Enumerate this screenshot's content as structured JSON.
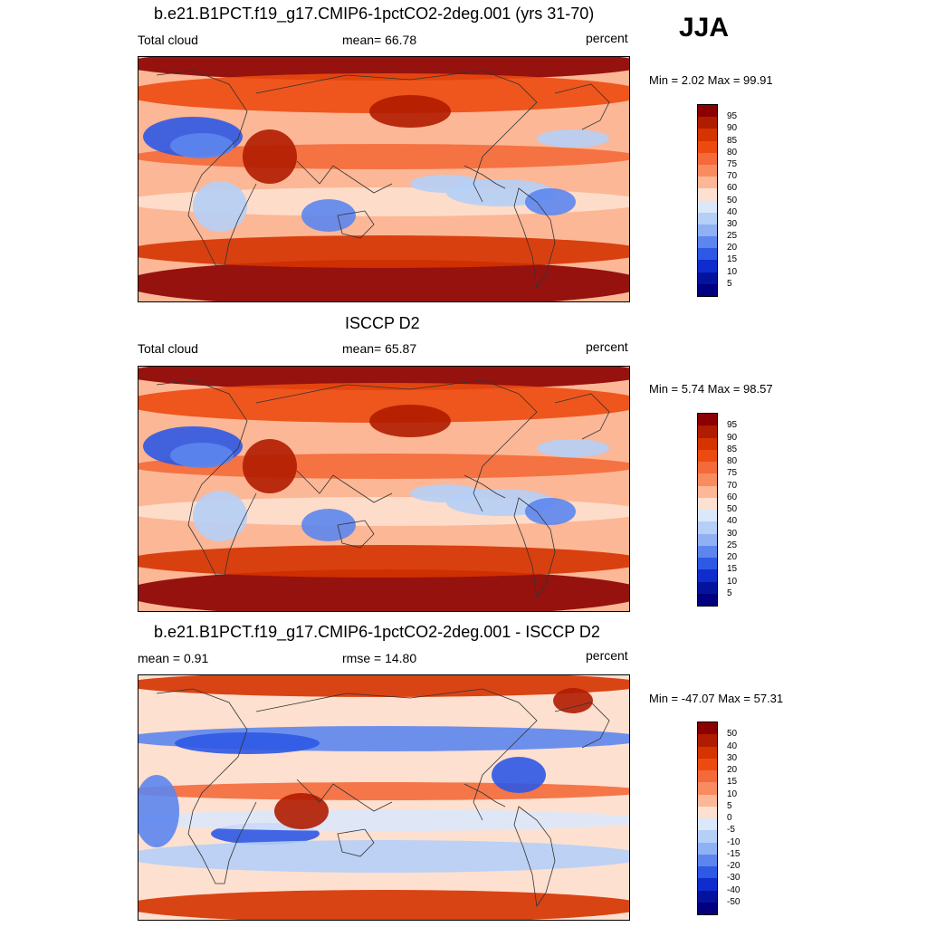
{
  "season": "JJA",
  "panels": [
    {
      "title": "b.e21.B1PCT.f19_g17.CMIP6-1pctCO2-2deg.001 (yrs 31-70)",
      "left_label": "Total cloud",
      "center_label": "mean=  66.78",
      "units": "percent",
      "minmax": "Min =   2.02 Max =  99.91",
      "colorbar_labels": [
        "95",
        "90",
        "85",
        "80",
        "75",
        "70",
        "60",
        "50",
        "40",
        "30",
        "25",
        "20",
        "15",
        "10",
        "5"
      ],
      "map_type": "absolute"
    },
    {
      "title": "ISCCP D2",
      "left_label": "Total cloud",
      "center_label": "mean=  65.87",
      "units": "percent",
      "minmax": "Min =   5.74 Max =  98.57",
      "colorbar_labels": [
        "95",
        "90",
        "85",
        "80",
        "75",
        "70",
        "60",
        "50",
        "40",
        "30",
        "25",
        "20",
        "15",
        "10",
        "5"
      ],
      "map_type": "absolute"
    },
    {
      "title": "b.e21.B1PCT.f19_g17.CMIP6-1pctCO2-2deg.001 - ISCCP D2",
      "left_label": "mean =   0.91",
      "center_label": "rmse =  14.80",
      "units": "percent",
      "minmax": "Min = -47.07 Max =  57.31",
      "colorbar_labels": [
        "50",
        "40",
        "30",
        "20",
        "15",
        "10",
        "5",
        "0",
        "-5",
        "-10",
        "-15",
        "-20",
        "-30",
        "-40",
        "-50"
      ],
      "map_type": "difference"
    }
  ],
  "colors": {
    "palette": [
      "#8b0000",
      "#b01c00",
      "#d53300",
      "#ec4b10",
      "#f46a3a",
      "#f98b61",
      "#fcb796",
      "#fde0cf",
      "#ffffff",
      "#dbe8fb",
      "#b5cff6",
      "#8fb0f2",
      "#5c86ee",
      "#2d59e4",
      "#0f2ccd",
      "#04139e",
      "#000080"
    ]
  }
}
